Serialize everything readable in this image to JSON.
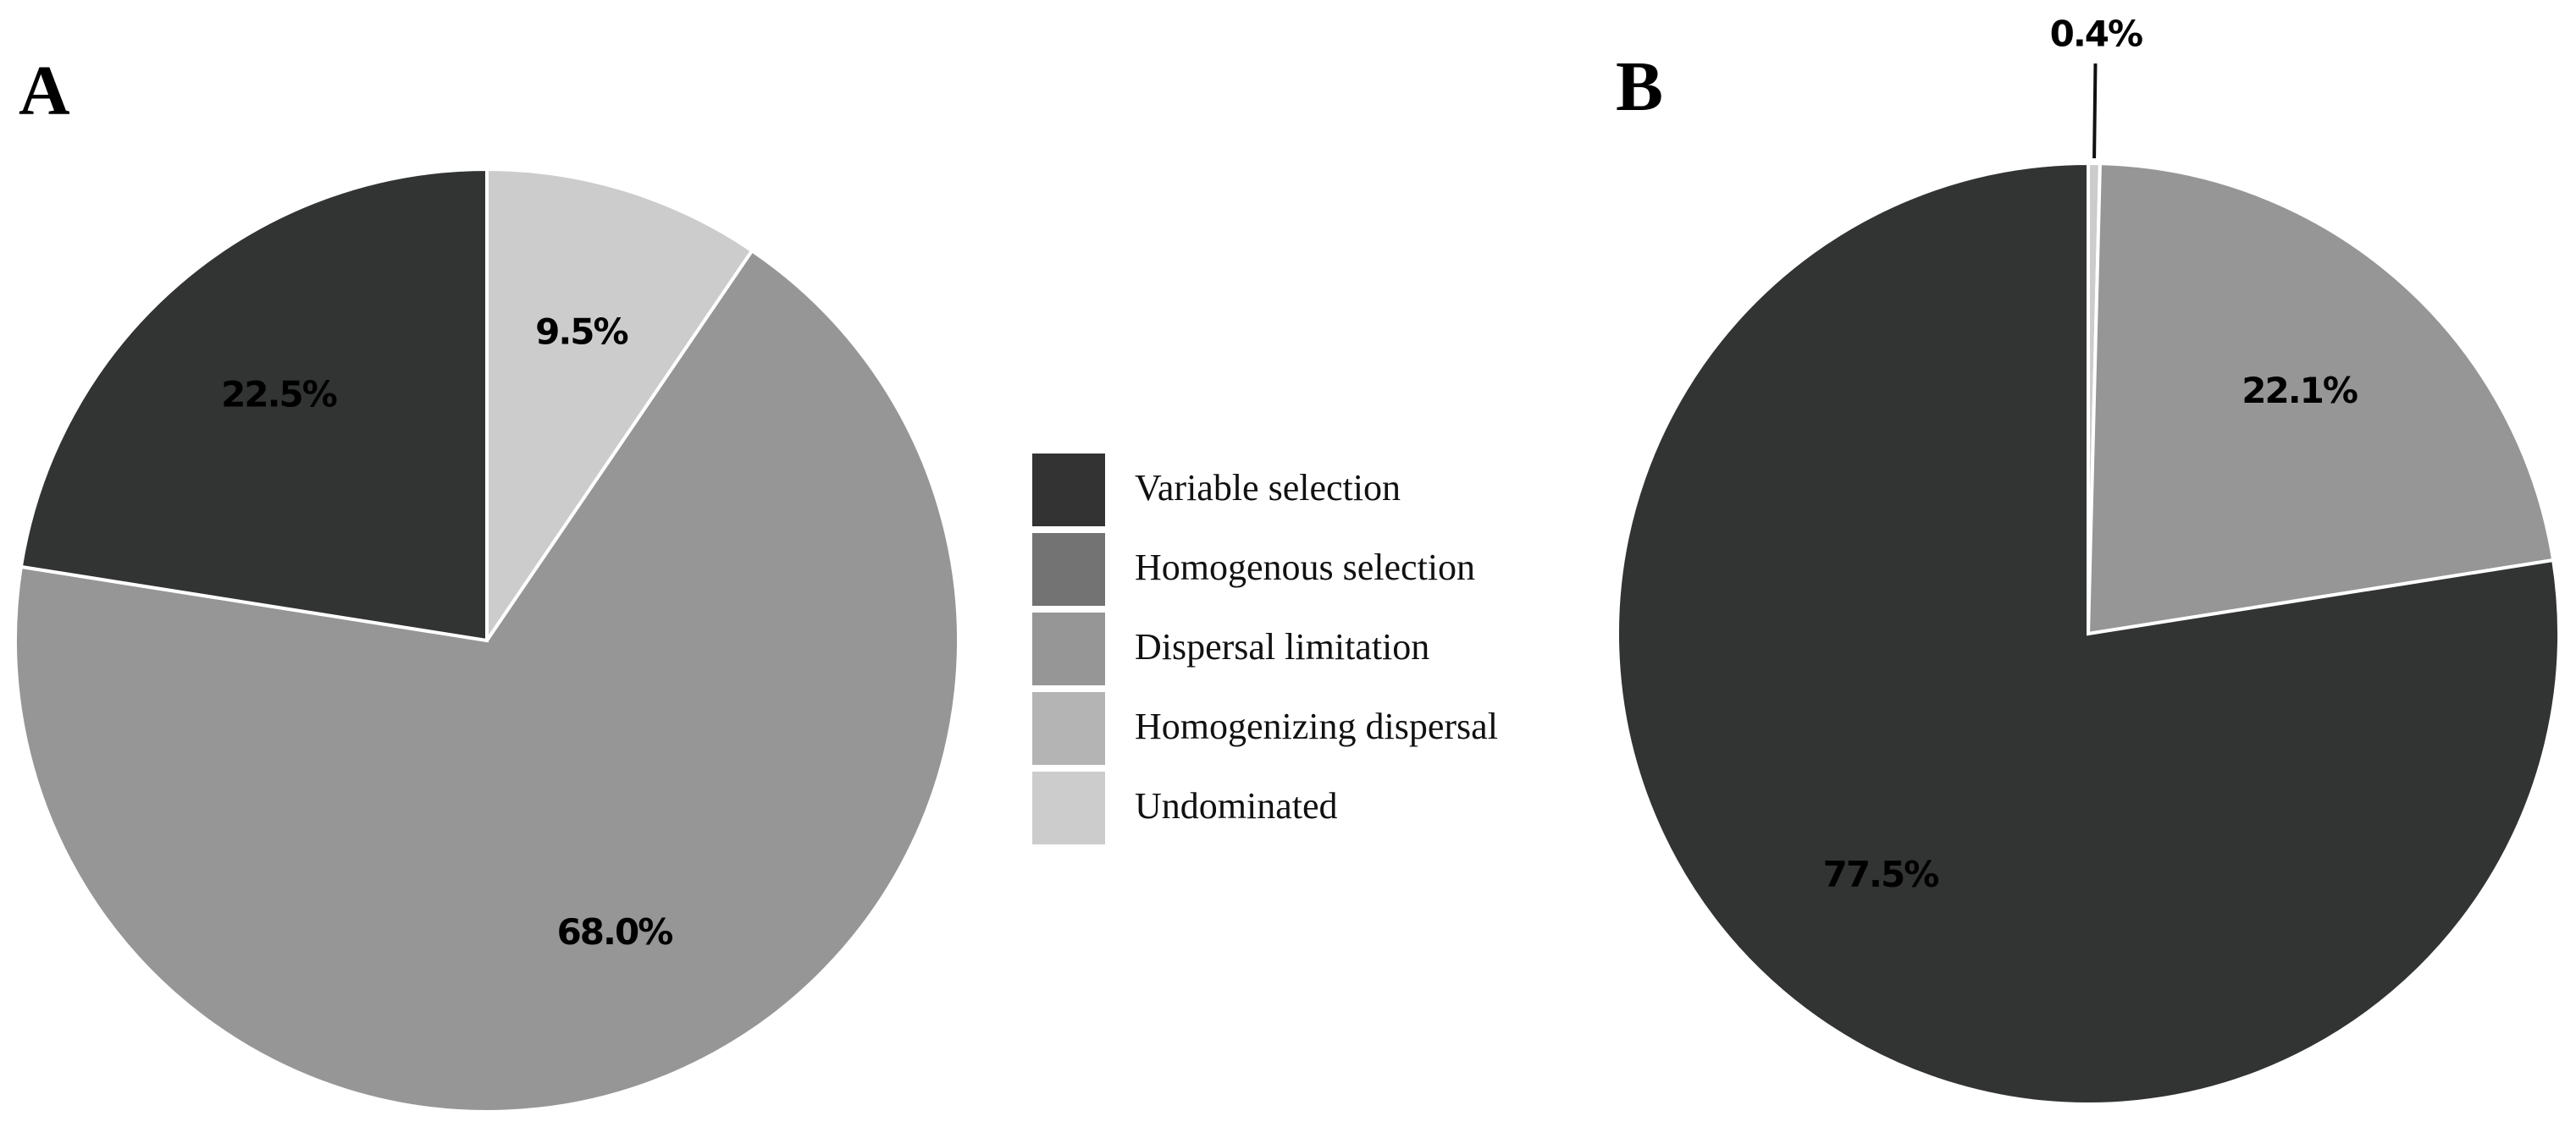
{
  "chart_data": [
    {
      "type": "pie",
      "label": "A",
      "values": [
        9.5,
        68.0,
        22.5
      ],
      "value_labels": [
        "9.5%",
        "68.0%",
        "22.5%"
      ],
      "colors": [
        "#cccccc",
        "#969696",
        "#323333"
      ]
    },
    {
      "type": "pie",
      "label": "B",
      "values": [
        0.4,
        22.1,
        77.5
      ],
      "value_labels": [
        "0.4%",
        "22.1%",
        "77.5%"
      ],
      "colors": [
        "#cccccc",
        "#969696",
        "#323333"
      ]
    }
  ],
  "legend": {
    "labels": [
      "Variable selection",
      "Homogenous selection",
      "Dispersal limitation",
      "Homogenizing dispersal",
      "Undominated"
    ],
    "colors": [
      "#333333",
      "#737373",
      "#969696",
      "#b4b4b4",
      "#cccccc"
    ]
  }
}
